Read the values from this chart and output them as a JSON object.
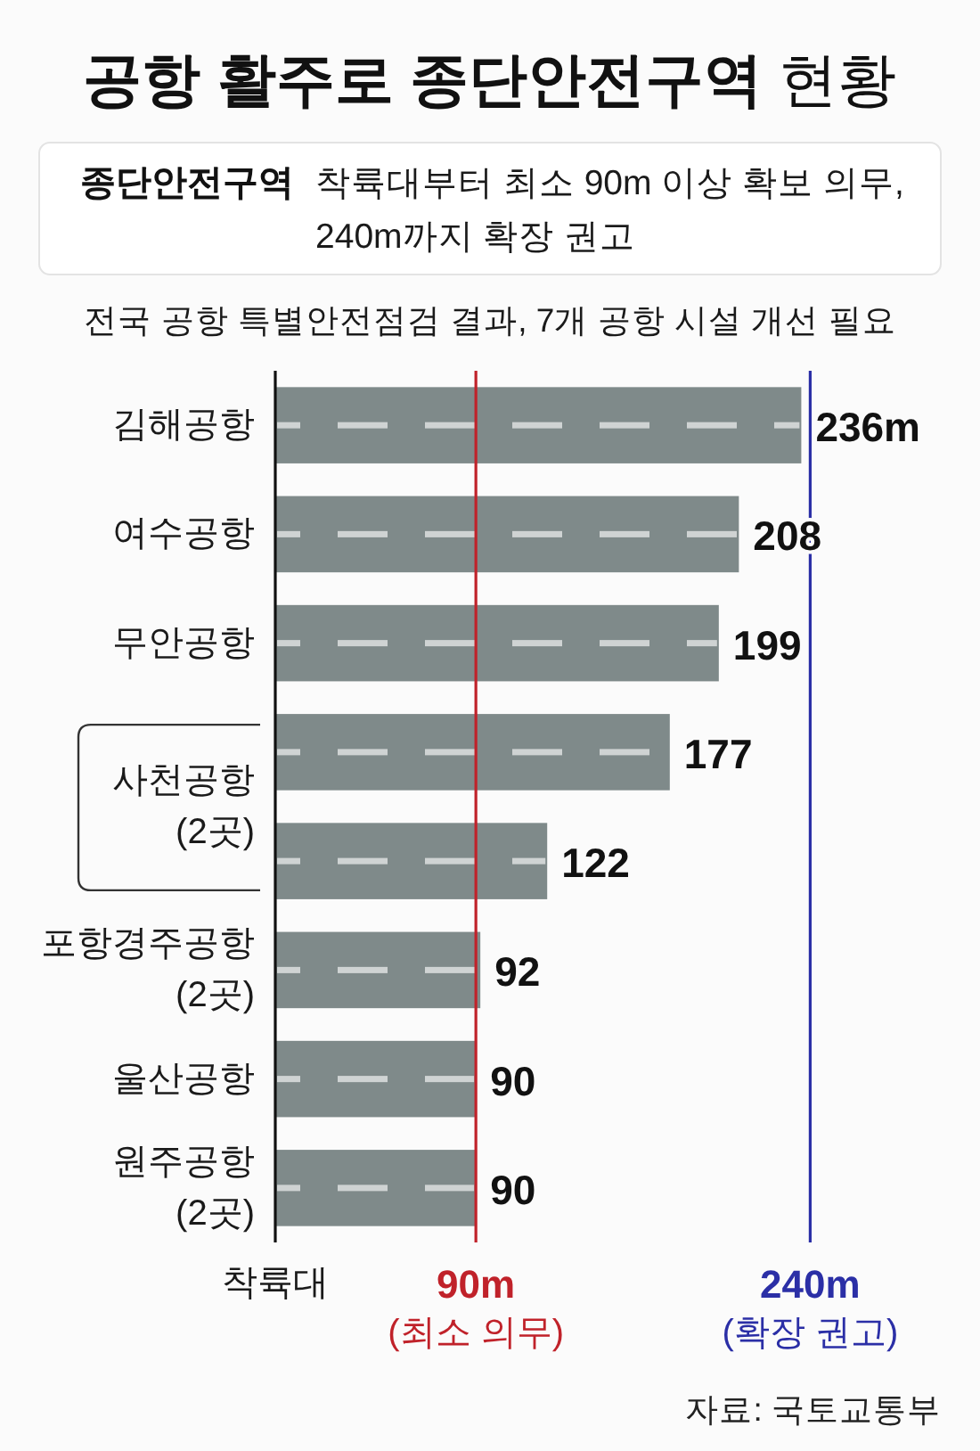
{
  "chart_data": {
    "type": "bar",
    "orientation": "horizontal",
    "title": "**공항 활주로 종단안전구역** 현황",
    "subtitle": "**종단안전구역** 착륙대부터 최소 90m 이상 확보 의무, 240m까지 확장 권고",
    "categories": [
      "김해공항",
      "여수공항",
      "무안공항",
      "사천공항 (2곳)",
      null,
      "포항경주공항 (2곳)",
      "울산공항",
      "원주공항 (2곳)"
    ],
    "values": [
      236,
      208,
      199,
      177,
      122,
      92,
      90,
      90
    ],
    "value_labels": [
      "236m",
      "208",
      "199",
      "177",
      "122",
      "92",
      "90",
      "90"
    ],
    "color": "#7f8a8a",
    "xlim": [
      0,
      240
    ],
    "xticks": [
      {
        "value": 0,
        "label": "착륙대"
      },
      {
        "value": 90,
        "label": "90m"
      },
      {
        "value": 240,
        "label": "240m"
      }
    ],
    "ref_lines": [
      {
        "axis": "x",
        "value": 90,
        "label": "(최소 의무)",
        "color": "#c0222a"
      },
      {
        "axis": "x",
        "value": 240,
        "label": "(확장 권고)",
        "color": "#2b2fa6"
      }
    ],
    "annotations": [
      "전국 공항 특별안전점검 결과, 7개 공항 시설 개선 필요",
      "자료: 국토교통부"
    ]
  }
}
